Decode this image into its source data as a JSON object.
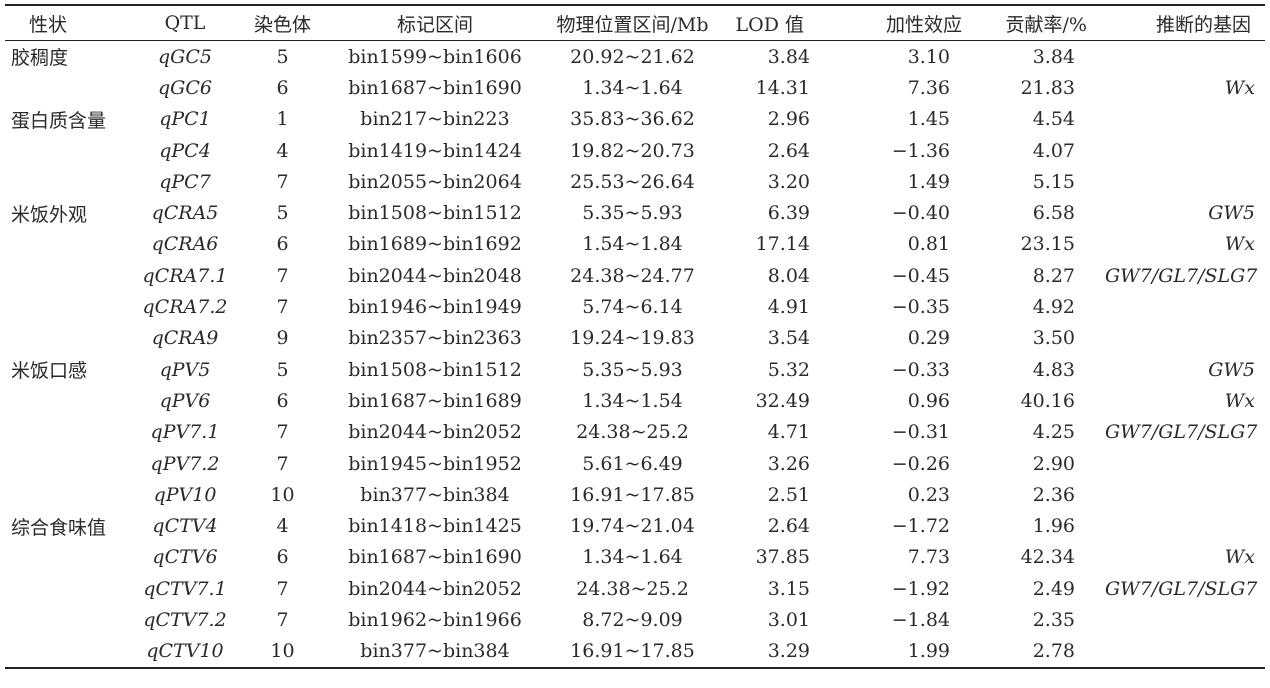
{
  "table": {
    "headers": [
      "性状",
      "QTL",
      "染色体",
      "标记区间",
      "物理位置区间/Mb",
      "LOD 值",
      "加性效应",
      "贡献率/%",
      "推断的基因"
    ],
    "rows": [
      {
        "trait": "胶稠度",
        "qtl": "qGC5",
        "chr": "5",
        "bin": "bin1599~bin1606",
        "pos": "20.92~21.62",
        "lod": "3.84",
        "add": "3.10",
        "pve": "3.84",
        "gene": ""
      },
      {
        "trait": "",
        "qtl": "qGC6",
        "chr": "6",
        "bin": "bin1687~bin1690",
        "pos": "1.34~1.64",
        "lod": "14.31",
        "add": "7.36",
        "pve": "21.83",
        "gene": "Wx"
      },
      {
        "trait": "蛋白质含量",
        "qtl": "qPC1",
        "chr": "1",
        "bin": "bin217~bin223",
        "pos": "35.83~36.62",
        "lod": "2.96",
        "add": "1.45",
        "pve": "4.54",
        "gene": ""
      },
      {
        "trait": "",
        "qtl": "qPC4",
        "chr": "4",
        "bin": "bin1419~bin1424",
        "pos": "19.82~20.73",
        "lod": "2.64",
        "add": "−1.36",
        "pve": "4.07",
        "gene": ""
      },
      {
        "trait": "",
        "qtl": "qPC7",
        "chr": "7",
        "bin": "bin2055~bin2064",
        "pos": "25.53~26.64",
        "lod": "3.20",
        "add": "1.49",
        "pve": "5.15",
        "gene": ""
      },
      {
        "trait": "米饭外观",
        "qtl": "qCRA5",
        "chr": "5",
        "bin": "bin1508~bin1512",
        "pos": "5.35~5.93",
        "lod": "6.39",
        "add": "−0.40",
        "pve": "6.58",
        "gene": "GW5"
      },
      {
        "trait": "",
        "qtl": "qCRA6",
        "chr": "6",
        "bin": "bin1689~bin1692",
        "pos": "1.54~1.84",
        "lod": "17.14",
        "add": "0.81",
        "pve": "23.15",
        "gene": "Wx"
      },
      {
        "trait": "",
        "qtl": "qCRA7.1",
        "chr": "7",
        "bin": "bin2044~bin2048",
        "pos": "24.38~24.77",
        "lod": "8.04",
        "add": "−0.45",
        "pve": "8.27",
        "gene": "GW7/GL7/SLG7"
      },
      {
        "trait": "",
        "qtl": "qCRA7.2",
        "chr": "7",
        "bin": "bin1946~bin1949",
        "pos": "5.74~6.14",
        "lod": "4.91",
        "add": "−0.35",
        "pve": "4.92",
        "gene": ""
      },
      {
        "trait": "",
        "qtl": "qCRA9",
        "chr": "9",
        "bin": "bin2357~bin2363",
        "pos": "19.24~19.83",
        "lod": "3.54",
        "add": "0.29",
        "pve": "3.50",
        "gene": ""
      },
      {
        "trait": "米饭口感",
        "qtl": "qPV5",
        "chr": "5",
        "bin": "bin1508~bin1512",
        "pos": "5.35~5.93",
        "lod": "5.32",
        "add": "−0.33",
        "pve": "4.83",
        "gene": "GW5"
      },
      {
        "trait": "",
        "qtl": "qPV6",
        "chr": "6",
        "bin": "bin1687~bin1689",
        "pos": "1.34~1.54",
        "lod": "32.49",
        "add": "0.96",
        "pve": "40.16",
        "gene": "Wx"
      },
      {
        "trait": "",
        "qtl": "qPV7.1",
        "chr": "7",
        "bin": "bin2044~bin2052",
        "pos": "24.38~25.2",
        "lod": "4.71",
        "add": "−0.31",
        "pve": "4.25",
        "gene": "GW7/GL7/SLG7"
      },
      {
        "trait": "",
        "qtl": "qPV7.2",
        "chr": "7",
        "bin": "bin1945~bin1952",
        "pos": "5.61~6.49",
        "lod": "3.26",
        "add": "−0.26",
        "pve": "2.90",
        "gene": ""
      },
      {
        "trait": "",
        "qtl": "qPV10",
        "chr": "10",
        "bin": "bin377~bin384",
        "pos": "16.91~17.85",
        "lod": "2.51",
        "add": "0.23",
        "pve": "2.36",
        "gene": ""
      },
      {
        "trait": "综合食味值",
        "qtl": "qCTV4",
        "chr": "4",
        "bin": "bin1418~bin1425",
        "pos": "19.74~21.04",
        "lod": "2.64",
        "add": "−1.72",
        "pve": "1.96",
        "gene": ""
      },
      {
        "trait": "",
        "qtl": "qCTV6",
        "chr": "6",
        "bin": "bin1687~bin1690",
        "pos": "1.34~1.64",
        "lod": "37.85",
        "add": "7.73",
        "pve": "42.34",
        "gene": "Wx"
      },
      {
        "trait": "",
        "qtl": "qCTV7.1",
        "chr": "7",
        "bin": "bin2044~bin2052",
        "pos": "24.38~25.2",
        "lod": "3.15",
        "add": "−1.92",
        "pve": "2.49",
        "gene": "GW7/GL7/SLG7"
      },
      {
        "trait": "",
        "qtl": "qCTV7.2",
        "chr": "7",
        "bin": "bin1962~bin1966",
        "pos": "8.72~9.09",
        "lod": "3.01",
        "add": "−1.84",
        "pve": "2.35",
        "gene": ""
      },
      {
        "trait": "",
        "qtl": "qCTV10",
        "chr": "10",
        "bin": "bin377~bin384",
        "pos": "16.91~17.85",
        "lod": "3.29",
        "add": "1.99",
        "pve": "2.78",
        "gene": ""
      }
    ]
  }
}
